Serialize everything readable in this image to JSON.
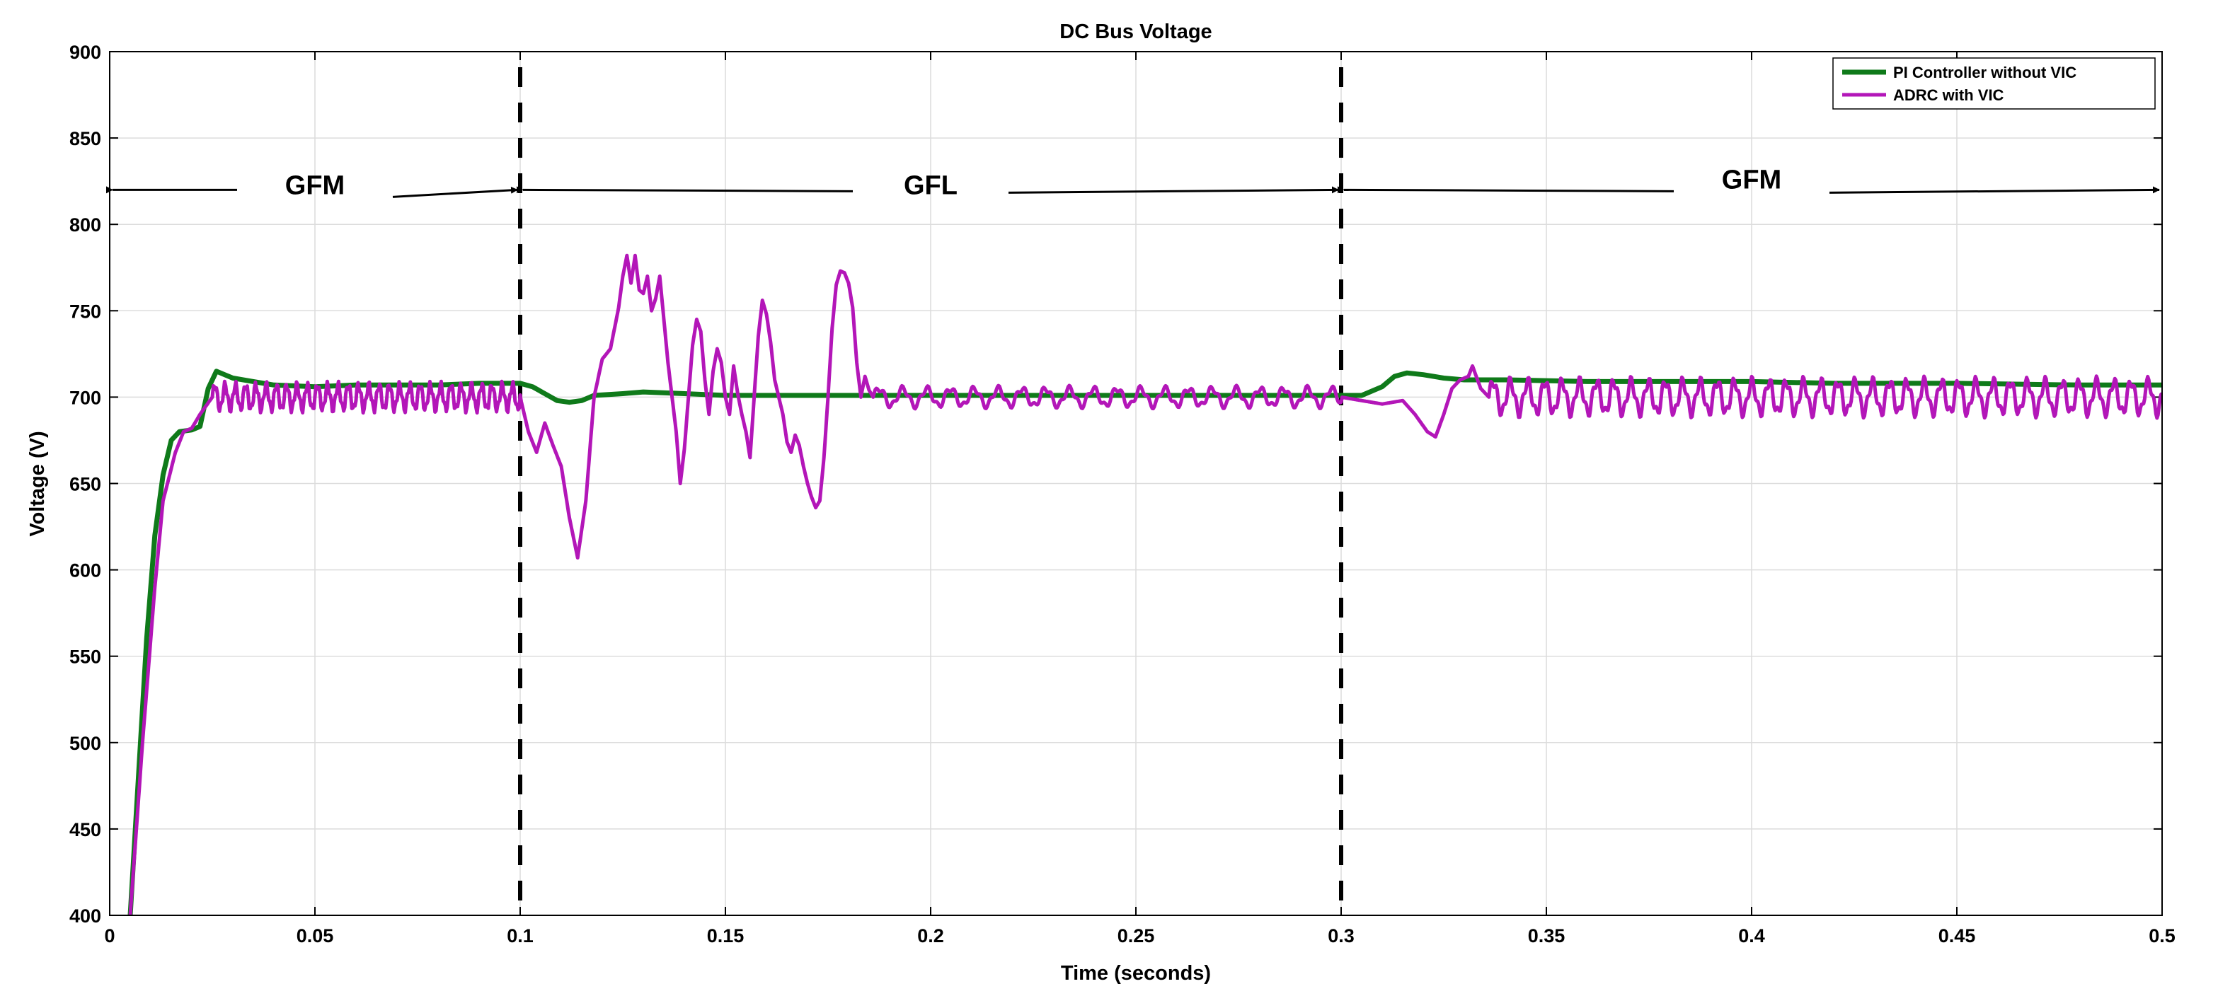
{
  "chart_data": {
    "type": "line",
    "title": "DC Bus Voltage",
    "xlabel": "Time (seconds)",
    "ylabel": "Voltage (V)",
    "xlim": [
      0,
      0.5
    ],
    "ylim": [
      400,
      900
    ],
    "xticks": [
      0,
      0.05,
      0.1,
      0.15,
      0.2,
      0.25,
      0.3,
      0.35,
      0.4,
      0.45,
      0.5
    ],
    "xtick_labels": [
      "0",
      "0.05",
      "0.1",
      "0.15",
      "0.2",
      "0.25",
      "0.3",
      "0.35",
      "0.4",
      "0.45",
      "0.5"
    ],
    "yticks": [
      400,
      450,
      500,
      550,
      600,
      650,
      700,
      750,
      800,
      850,
      900
    ],
    "yticks_labels": [
      "400",
      "450",
      "500",
      "550",
      "600",
      "650",
      "700",
      "750",
      "800",
      "850",
      "900"
    ],
    "grid": true,
    "legend_position": "top-right",
    "series": [
      {
        "name": "PI Controller without VIC",
        "color": "#0f7a1a",
        "points": [
          [
            0.005,
            400
          ],
          [
            0.007,
            480
          ],
          [
            0.009,
            560
          ],
          [
            0.011,
            620
          ],
          [
            0.013,
            655
          ],
          [
            0.015,
            675
          ],
          [
            0.017,
            680
          ],
          [
            0.02,
            681
          ],
          [
            0.022,
            683
          ],
          [
            0.024,
            705
          ],
          [
            0.026,
            715
          ],
          [
            0.028,
            713
          ],
          [
            0.03,
            711
          ],
          [
            0.035,
            709
          ],
          [
            0.04,
            707
          ],
          [
            0.05,
            706
          ],
          [
            0.06,
            707
          ],
          [
            0.07,
            707
          ],
          [
            0.08,
            707
          ],
          [
            0.09,
            708
          ],
          [
            0.1,
            708
          ],
          [
            0.103,
            706
          ],
          [
            0.106,
            702
          ],
          [
            0.109,
            698
          ],
          [
            0.112,
            697
          ],
          [
            0.115,
            698
          ],
          [
            0.118,
            701
          ],
          [
            0.125,
            702
          ],
          [
            0.13,
            703
          ],
          [
            0.14,
            702
          ],
          [
            0.15,
            701
          ],
          [
            0.17,
            701
          ],
          [
            0.2,
            701
          ],
          [
            0.25,
            701
          ],
          [
            0.3,
            701
          ],
          [
            0.305,
            701
          ],
          [
            0.31,
            706
          ],
          [
            0.313,
            712
          ],
          [
            0.316,
            714
          ],
          [
            0.32,
            713
          ],
          [
            0.325,
            711
          ],
          [
            0.33,
            710
          ],
          [
            0.34,
            710
          ],
          [
            0.36,
            709
          ],
          [
            0.38,
            709
          ],
          [
            0.4,
            709
          ],
          [
            0.42,
            708
          ],
          [
            0.45,
            708
          ],
          [
            0.48,
            707
          ],
          [
            0.5,
            707
          ]
        ]
      },
      {
        "name": "ADRC with VIC",
        "color": "#b316b8",
        "points": [
          [
            0.005,
            400
          ],
          [
            0.008,
            500
          ],
          [
            0.011,
            590
          ],
          [
            0.013,
            640
          ],
          [
            0.016,
            668
          ],
          [
            0.018,
            680
          ],
          [
            0.02,
            682
          ],
          [
            0.022,
            690
          ],
          [
            0.025,
            700
          ],
          [
            0.1,
            700
          ],
          [
            0.102,
            680
          ],
          [
            0.104,
            668
          ],
          [
            0.106,
            685
          ],
          [
            0.108,
            672
          ],
          [
            0.11,
            660
          ],
          [
            0.112,
            630
          ],
          [
            0.114,
            607
          ],
          [
            0.116,
            640
          ],
          [
            0.118,
            700
          ],
          [
            0.12,
            722
          ],
          [
            0.122,
            728
          ],
          [
            0.124,
            752
          ],
          [
            0.125,
            770
          ],
          [
            0.126,
            782
          ],
          [
            0.127,
            766
          ],
          [
            0.128,
            782
          ],
          [
            0.129,
            762
          ],
          [
            0.13,
            760
          ],
          [
            0.131,
            770
          ],
          [
            0.132,
            750
          ],
          [
            0.133,
            757
          ],
          [
            0.134,
            770
          ],
          [
            0.135,
            745
          ],
          [
            0.136,
            720
          ],
          [
            0.137,
            700
          ],
          [
            0.138,
            680
          ],
          [
            0.139,
            650
          ],
          [
            0.14,
            670
          ],
          [
            0.141,
            700
          ],
          [
            0.142,
            730
          ],
          [
            0.143,
            745
          ],
          [
            0.144,
            738
          ],
          [
            0.145,
            710
          ],
          [
            0.146,
            690
          ],
          [
            0.147,
            715
          ],
          [
            0.148,
            728
          ],
          [
            0.149,
            720
          ],
          [
            0.15,
            700
          ],
          [
            0.151,
            690
          ],
          [
            0.152,
            718
          ],
          [
            0.153,
            702
          ],
          [
            0.154,
            690
          ],
          [
            0.155,
            680
          ],
          [
            0.156,
            665
          ],
          [
            0.157,
            700
          ],
          [
            0.158,
            735
          ],
          [
            0.159,
            756
          ],
          [
            0.16,
            748
          ],
          [
            0.161,
            732
          ],
          [
            0.162,
            710
          ],
          [
            0.163,
            700
          ],
          [
            0.164,
            690
          ],
          [
            0.165,
            674
          ],
          [
            0.166,
            668
          ],
          [
            0.167,
            678
          ],
          [
            0.168,
            672
          ],
          [
            0.169,
            660
          ],
          [
            0.17,
            650
          ],
          [
            0.171,
            642
          ],
          [
            0.172,
            636
          ],
          [
            0.173,
            640
          ],
          [
            0.174,
            665
          ],
          [
            0.175,
            700
          ],
          [
            0.176,
            740
          ],
          [
            0.177,
            765
          ],
          [
            0.178,
            773
          ],
          [
            0.179,
            772
          ],
          [
            0.18,
            766
          ],
          [
            0.181,
            752
          ],
          [
            0.182,
            720
          ],
          [
            0.183,
            700
          ],
          [
            0.184,
            712
          ],
          [
            0.185,
            704
          ],
          [
            0.186,
            700
          ],
          [
            0.3,
            700
          ],
          [
            0.305,
            698
          ],
          [
            0.31,
            696
          ],
          [
            0.315,
            698
          ],
          [
            0.318,
            690
          ],
          [
            0.321,
            680
          ],
          [
            0.323,
            677
          ],
          [
            0.325,
            690
          ],
          [
            0.327,
            705
          ],
          [
            0.329,
            710
          ],
          [
            0.331,
            712
          ],
          [
            0.332,
            718
          ],
          [
            0.334,
            705
          ],
          [
            0.336,
            700
          ],
          [
            0.5,
            700
          ]
        ],
        "oscillation": [
          {
            "start": 0.025,
            "end": 0.1,
            "amplitude": 7,
            "period": 0.0025
          },
          {
            "start": 0.186,
            "end": 0.3,
            "amplitude": 5,
            "period": 0.0058
          },
          {
            "start": 0.336,
            "end": 0.5,
            "amplitude": 9,
            "period": 0.0042
          }
        ]
      }
    ],
    "mode_boundaries": [
      0.1,
      0.3
    ],
    "annotations": [
      {
        "text": "GFM",
        "x_start": 0,
        "x_end": 0.1,
        "y": 820
      },
      {
        "text": "GFL",
        "x_start": 0.1,
        "x_end": 0.3,
        "y": 820
      },
      {
        "text": "GFM",
        "x_start": 0.3,
        "x_end": 0.5,
        "y": 820
      }
    ]
  }
}
